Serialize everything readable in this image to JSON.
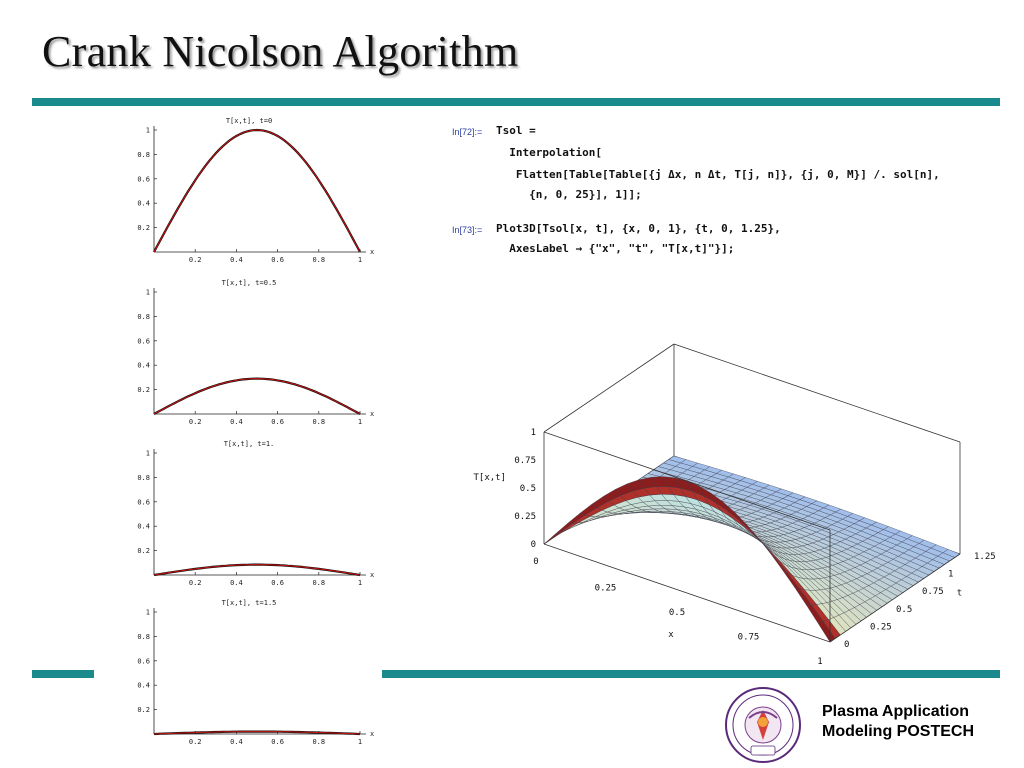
{
  "slide": {
    "title": "Crank Nicolson Algorithm"
  },
  "colors": {
    "accent": "#1b8a8c",
    "curve": "#cc1111",
    "surface": "#a9c4ec"
  },
  "chart_data": [
    {
      "type": "line",
      "title": "T[x,t], t=0",
      "xlabel": "x",
      "ylabel": "",
      "xlim": [
        0,
        1
      ],
      "ylim": [
        0,
        1
      ],
      "xticks": [
        "0.2",
        "0.4",
        "0.6",
        "0.8",
        "1"
      ],
      "yticks": [
        "0.2",
        "0.4",
        "0.6",
        "0.8",
        "1"
      ],
      "amplitude": 1.0
    },
    {
      "type": "line",
      "title": "T[x,t], t=0.5",
      "xlabel": "x",
      "ylabel": "",
      "xlim": [
        0,
        1
      ],
      "ylim": [
        0,
        1
      ],
      "xticks": [
        "0.2",
        "0.4",
        "0.6",
        "0.8",
        "1"
      ],
      "yticks": [
        "0.2",
        "0.4",
        "0.6",
        "0.8",
        "1"
      ],
      "amplitude": 0.29
    },
    {
      "type": "line",
      "title": "T[x,t], t=1.",
      "xlabel": "x",
      "ylabel": "",
      "xlim": [
        0,
        1
      ],
      "ylim": [
        0,
        1
      ],
      "xticks": [
        "0.2",
        "0.4",
        "0.6",
        "0.8",
        "1"
      ],
      "yticks": [
        "0.2",
        "0.4",
        "0.6",
        "0.8",
        "1"
      ],
      "amplitude": 0.085
    },
    {
      "type": "line",
      "title": "T[x,t], t=1.5",
      "xlabel": "x",
      "ylabel": "",
      "xlim": [
        0,
        1
      ],
      "ylim": [
        0,
        1
      ],
      "xticks": [
        "0.2",
        "0.4",
        "0.6",
        "0.8",
        "1"
      ],
      "yticks": [
        "0.2",
        "0.4",
        "0.6",
        "0.8",
        "1"
      ],
      "amplitude": 0.02
    },
    {
      "type": "surface",
      "title": "",
      "xlabel": "x",
      "ylabel": "t",
      "zlabel": "T[x,t]",
      "xlim": [
        0,
        1
      ],
      "ylim": [
        0,
        1.25
      ],
      "zlim": [
        0,
        1
      ],
      "xticks": [
        "0.25",
        "0.5",
        "0.75",
        "1"
      ],
      "yticks": [
        "0",
        "0.25",
        "0.5",
        "0.75",
        "1",
        "1.25"
      ],
      "zticks": [
        "0",
        "0.25",
        "0.5",
        "0.75",
        "1"
      ],
      "xticks_origin": "0"
    }
  ],
  "notebook": {
    "cell1_prompt": "In[72]:=",
    "cell1_lines": [
      "Tsol =",
      "  Interpolation[",
      "   Flatten[Table[Table[{j Δx, n Δt, T[j, n]}, {j, 0, M}] /. sol[n],",
      "     {n, 0, 25}], 1]];"
    ],
    "cell2_prompt": "In[73]:=",
    "cell2_lines": [
      "Plot3D[Tsol[x, t], {x, 0, 1}, {t, 0, 1.25},",
      "  AxesLabel → {\"x\", \"t\", \"T[x,t]\"}];"
    ]
  },
  "footer": {
    "org_line1": "Plasma Application",
    "org_line2": "Modeling POSTECH",
    "logo_icon": "university-seal-icon"
  }
}
